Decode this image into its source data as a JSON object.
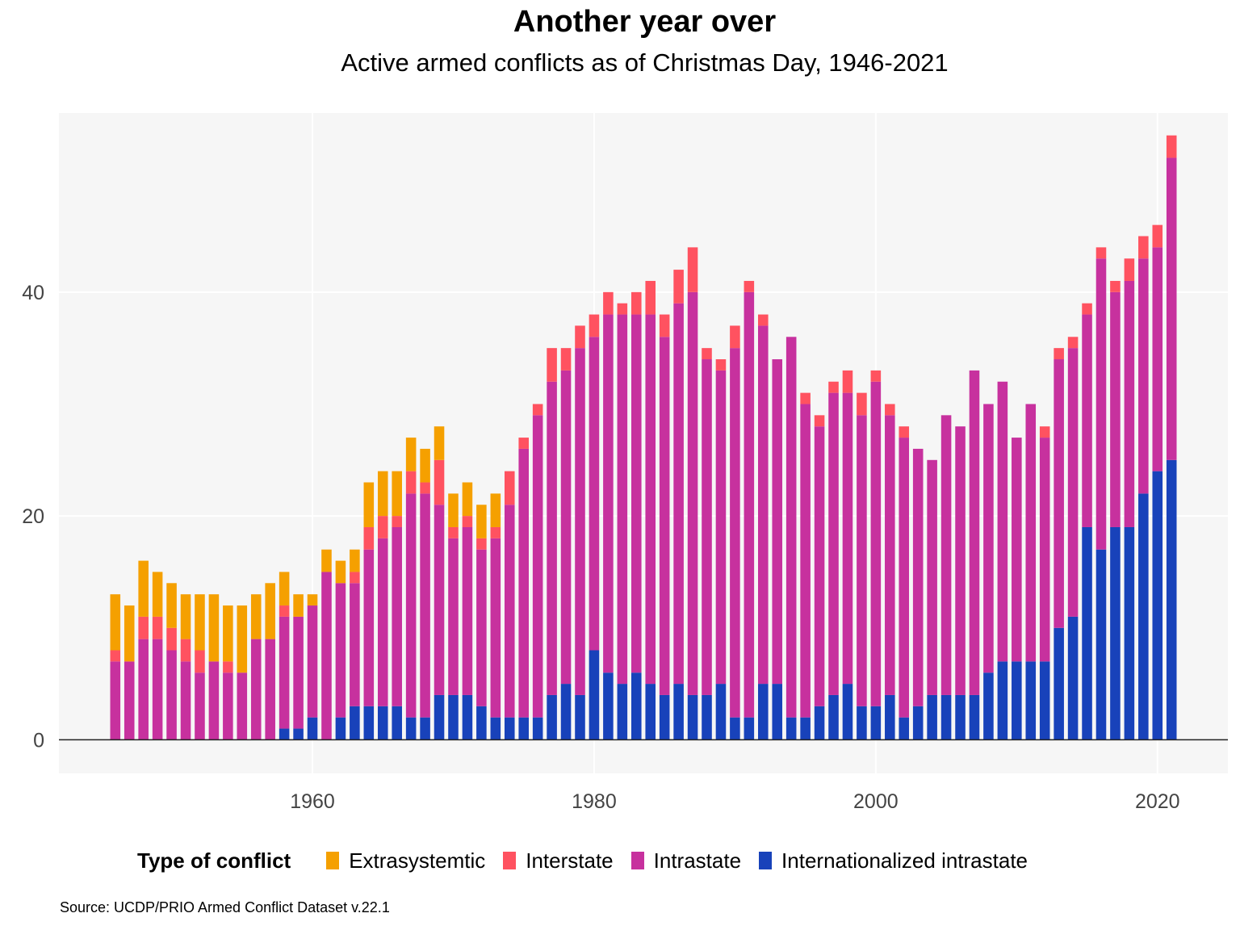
{
  "title": "Another year over",
  "subtitle": "Active armed conflicts as of Christmas Day, 1946-2021",
  "source": "Source: UCDP/PRIO Armed Conflict Dataset v.22.1",
  "legend": {
    "title": "Type of conflict",
    "items": [
      {
        "label": "Extrasystemtic",
        "color": "#F5A000"
      },
      {
        "label": "Interstate",
        "color": "#FF5260"
      },
      {
        "label": "Intrastate",
        "color": "#C7319E"
      },
      {
        "label": "Internationalized intrastate",
        "color": "#1842BA"
      }
    ]
  },
  "chart_data": {
    "type": "bar",
    "stacked": true,
    "title": "Another year over",
    "subtitle": "Active armed conflicts as of Christmas Day, 1946-2021",
    "xlabel": "",
    "ylabel": "",
    "xlim": [
      1942,
      2025
    ],
    "ylim": [
      -3,
      56
    ],
    "x_ticks": [
      1960,
      1980,
      2000,
      2020
    ],
    "y_ticks": [
      0,
      20,
      40
    ],
    "grid": true,
    "legend_position": "bottom",
    "categories": [
      1946,
      1947,
      1948,
      1949,
      1950,
      1951,
      1952,
      1953,
      1954,
      1955,
      1956,
      1957,
      1958,
      1959,
      1960,
      1961,
      1962,
      1963,
      1964,
      1965,
      1966,
      1967,
      1968,
      1969,
      1970,
      1971,
      1972,
      1973,
      1974,
      1975,
      1976,
      1977,
      1978,
      1979,
      1980,
      1981,
      1982,
      1983,
      1984,
      1985,
      1986,
      1987,
      1988,
      1989,
      1990,
      1991,
      1992,
      1993,
      1994,
      1995,
      1996,
      1997,
      1998,
      1999,
      2000,
      2001,
      2002,
      2003,
      2004,
      2005,
      2006,
      2007,
      2008,
      2009,
      2010,
      2011,
      2012,
      2013,
      2014,
      2015,
      2016,
      2017,
      2018,
      2019,
      2020,
      2021
    ],
    "series": [
      {
        "name": "Internationalized intrastate",
        "color": "#1842BA",
        "values": [
          0,
          0,
          0,
          0,
          0,
          0,
          0,
          0,
          0,
          0,
          0,
          0,
          1,
          1,
          2,
          0,
          2,
          3,
          3,
          3,
          3,
          2,
          2,
          4,
          4,
          4,
          3,
          2,
          2,
          2,
          2,
          4,
          5,
          4,
          8,
          6,
          5,
          6,
          5,
          4,
          5,
          4,
          4,
          5,
          2,
          2,
          5,
          5,
          2,
          2,
          3,
          4,
          5,
          3,
          3,
          4,
          2,
          3,
          4,
          4,
          4,
          4,
          6,
          7,
          7,
          7,
          7,
          10,
          11,
          19,
          17,
          19,
          19,
          22,
          24,
          25
        ]
      },
      {
        "name": "Intrastate",
        "color": "#C7319E",
        "values": [
          7,
          7,
          9,
          9,
          8,
          7,
          6,
          7,
          6,
          6,
          9,
          9,
          10,
          10,
          10,
          15,
          12,
          11,
          14,
          15,
          16,
          20,
          20,
          17,
          14,
          15,
          14,
          16,
          19,
          24,
          27,
          28,
          28,
          31,
          28,
          32,
          33,
          32,
          33,
          32,
          34,
          36,
          30,
          28,
          33,
          38,
          32,
          29,
          34,
          28,
          25,
          27,
          26,
          26,
          29,
          25,
          25,
          23,
          21,
          25,
          24,
          29,
          24,
          25,
          20,
          23,
          20,
          24,
          24,
          19,
          26,
          21,
          22,
          21,
          20,
          27
        ]
      },
      {
        "name": "Interstate",
        "color": "#FF5260",
        "values": [
          1,
          0,
          2,
          2,
          2,
          2,
          2,
          0,
          1,
          0,
          0,
          0,
          1,
          0,
          0,
          0,
          0,
          1,
          2,
          2,
          1,
          2,
          1,
          4,
          1,
          1,
          1,
          1,
          3,
          1,
          1,
          3,
          2,
          2,
          2,
          2,
          1,
          2,
          3,
          2,
          3,
          4,
          1,
          1,
          2,
          1,
          1,
          0,
          0,
          1,
          1,
          1,
          2,
          2,
          1,
          1,
          1,
          0,
          0,
          0,
          0,
          0,
          0,
          0,
          0,
          0,
          1,
          1,
          1,
          1,
          1,
          1,
          2,
          2,
          2,
          2
        ]
      },
      {
        "name": "Extrasystemtic",
        "color": "#F5A000",
        "values": [
          5,
          5,
          5,
          4,
          4,
          4,
          5,
          6,
          5,
          6,
          4,
          5,
          3,
          2,
          1,
          2,
          2,
          2,
          4,
          4,
          4,
          3,
          3,
          3,
          3,
          3,
          3,
          3,
          0,
          0,
          0,
          0,
          0,
          0,
          0,
          0,
          0,
          0,
          0,
          0,
          0,
          0,
          0,
          0,
          0,
          0,
          0,
          0,
          0,
          0,
          0,
          0,
          0,
          0,
          0,
          0,
          0,
          0,
          0,
          0,
          0,
          0,
          0,
          0,
          0,
          0,
          0,
          0,
          0,
          0,
          0,
          0,
          0,
          0,
          0,
          0
        ]
      }
    ]
  }
}
